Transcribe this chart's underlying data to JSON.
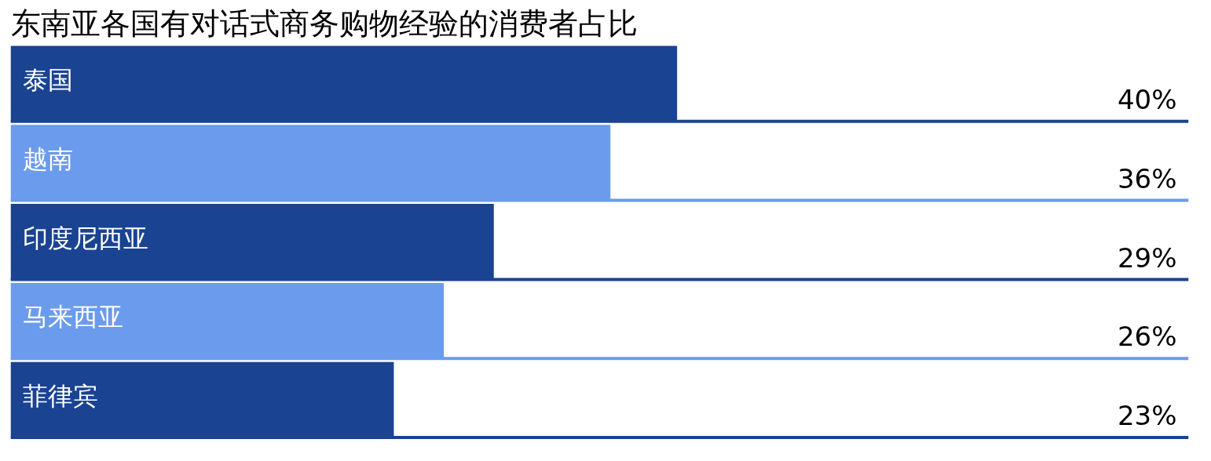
{
  "chart_data": {
    "type": "bar",
    "orientation": "horizontal",
    "title": "东南亚各国有对话式商务购物经验的消费者占比",
    "categories": [
      "泰国",
      "越南",
      "印度尼西亚",
      "马来西亚",
      "菲律宾"
    ],
    "values": [
      40,
      36,
      29,
      26,
      23
    ],
    "colors": [
      "#1a4391",
      "#6b9bec",
      "#1a4391",
      "#6b9bec",
      "#1a4391"
    ],
    "value_labels": [
      "40%",
      "36%",
      "29%",
      "26%",
      "23%"
    ],
    "xlim": [
      0,
      70.7
    ],
    "tick_labels": false,
    "grid": false
  }
}
